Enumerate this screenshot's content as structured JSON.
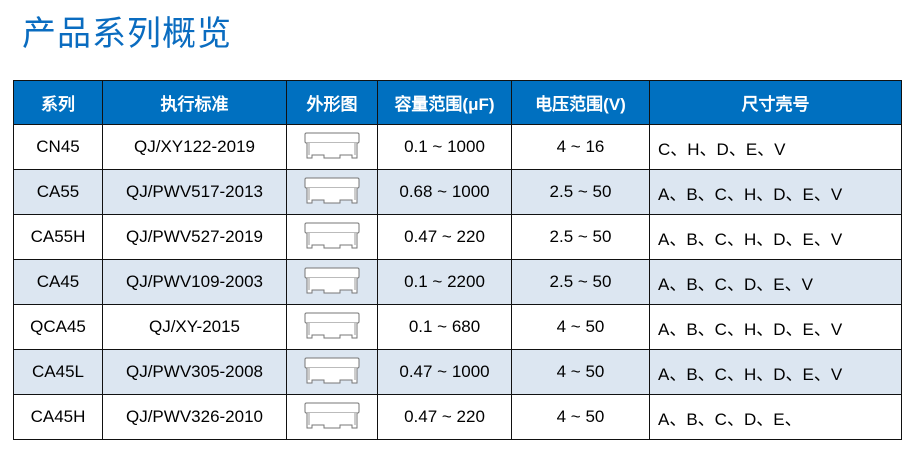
{
  "title": "产品系列概览",
  "headers": [
    "系列",
    "执行标准",
    "外形图",
    "容量范围(μF)",
    "电压范围(V)",
    "尺寸壳号"
  ],
  "rows": [
    {
      "series": "CN45",
      "standard": "QJ/XY122-2019",
      "capacitance": "0.1 ~ 1000",
      "voltage": "4 ~ 16",
      "sizes": "C、H、D、E、V"
    },
    {
      "series": "CA55",
      "standard": "QJ/PWV517-2013",
      "capacitance": "0.68 ~ 1000",
      "voltage": "2.5 ~ 50",
      "sizes": "A、B、C、H、D、E、V"
    },
    {
      "series": "CA55H",
      "standard": "QJ/PWV527-2019",
      "capacitance": "0.47 ~ 220",
      "voltage": "2.5 ~ 50",
      "sizes": "A、B、C、H、D、E、V"
    },
    {
      "series": "CA45",
      "standard": "QJ/PWV109-2003",
      "capacitance": "0.1 ~ 2200",
      "voltage": "2.5 ~ 50",
      "sizes": "A、B、C、D、E、V"
    },
    {
      "series": "QCA45",
      "standard": "QJ/XY-2015",
      "capacitance": "0.1 ~ 680",
      "voltage": "4 ~ 50",
      "sizes": "A、B、C、H、D、E、V"
    },
    {
      "series": "CA45L",
      "standard": "QJ/PWV305-2008",
      "capacitance": "0.47 ~ 1000",
      "voltage": "4 ~ 50",
      "sizes": "A、B、C、H、D、E、V"
    },
    {
      "series": "CA45H",
      "standard": "QJ/PWV326-2010",
      "capacitance": "0.47 ~ 220",
      "voltage": "4 ~ 50",
      "sizes": "A、B、C、D、E、"
    }
  ],
  "colors": {
    "title": "#0a6cc0",
    "header_bg": "#0070c0",
    "alt_row": "#dce6f1"
  },
  "icons": {
    "package": "chip-capacitor-outline-icon"
  }
}
